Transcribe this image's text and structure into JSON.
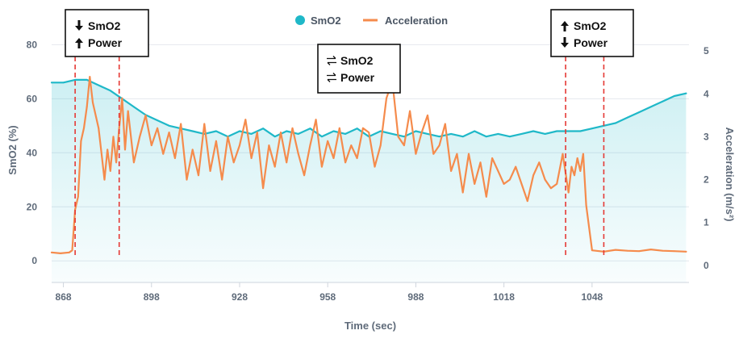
{
  "chart_data": {
    "type": "line",
    "xlabel": "Time (sec)",
    "ylabel_left": "SmO2 (%)",
    "ylabel_right": "Acceleration (m/s²)",
    "x_ticks": [
      868,
      898,
      928,
      958,
      988,
      1018,
      1048
    ],
    "x_tick_labels": [
      "868",
      "898",
      "928",
      "958",
      "988",
      "1018",
      "1048"
    ],
    "y_left_ticks": [
      0,
      20,
      40,
      60,
      80
    ],
    "y_left_tick_labels": [
      "0",
      "20",
      "40",
      "60",
      "80"
    ],
    "y_right_ticks": [
      0,
      1,
      2,
      3,
      4,
      5
    ],
    "y_right_tick_labels": [
      "0",
      "1",
      "2",
      "3",
      "4",
      "5"
    ],
    "xlim": [
      864,
      1081
    ],
    "ylim_left": [
      -8,
      84
    ],
    "ylim_right": [
      -0.4,
      5.4
    ],
    "legend_position": "top-center",
    "grid": "horizontal",
    "series": [
      {
        "name": "SmO2",
        "axis": "left",
        "color": "#1fb8c8",
        "fill": "area",
        "x": [
          864,
          868,
          872,
          876,
          880,
          884,
          888,
          892,
          896,
          900,
          904,
          908,
          912,
          916,
          920,
          924,
          928,
          932,
          936,
          940,
          944,
          948,
          952,
          956,
          960,
          964,
          968,
          972,
          976,
          980,
          984,
          988,
          992,
          996,
          1000,
          1004,
          1008,
          1012,
          1016,
          1020,
          1024,
          1028,
          1032,
          1036,
          1040,
          1044,
          1048,
          1052,
          1056,
          1060,
          1064,
          1068,
          1072,
          1076,
          1080
        ],
        "values": [
          66,
          66,
          67,
          67,
          65,
          63,
          60,
          57,
          54,
          52,
          50,
          49,
          48,
          47,
          48,
          46,
          48,
          47,
          49,
          46,
          48,
          47,
          49,
          46,
          48,
          47,
          49,
          46,
          48,
          47,
          46,
          48,
          47,
          46,
          47,
          46,
          48,
          46,
          47,
          46,
          47,
          48,
          47,
          48,
          48,
          48,
          49,
          50,
          51,
          53,
          55,
          57,
          59,
          61,
          62
        ]
      },
      {
        "name": "Acceleration",
        "axis": "right",
        "color": "#f58b4c",
        "fill": "none",
        "x": [
          864,
          867,
          870,
          871,
          872,
          873,
          874,
          875,
          876,
          877,
          878,
          880,
          881,
          882,
          883,
          884,
          885,
          886,
          887,
          888,
          889,
          890,
          892,
          894,
          896,
          898,
          900,
          902,
          904,
          906,
          908,
          910,
          912,
          914,
          916,
          918,
          920,
          922,
          924,
          926,
          928,
          930,
          932,
          934,
          936,
          938,
          940,
          942,
          944,
          946,
          948,
          950,
          952,
          954,
          956,
          958,
          960,
          962,
          964,
          966,
          968,
          970,
          972,
          974,
          976,
          978,
          980,
          982,
          984,
          986,
          988,
          990,
          992,
          994,
          996,
          998,
          1000,
          1002,
          1004,
          1006,
          1008,
          1010,
          1012,
          1014,
          1016,
          1018,
          1020,
          1022,
          1024,
          1026,
          1028,
          1030,
          1032,
          1034,
          1036,
          1038,
          1040,
          1041,
          1042,
          1043,
          1044,
          1045,
          1046,
          1048,
          1052,
          1056,
          1060,
          1064,
          1068,
          1072,
          1076,
          1080
        ],
        "values": [
          0.3,
          0.28,
          0.3,
          0.35,
          1.3,
          1.6,
          2.9,
          3.2,
          3.7,
          4.4,
          3.8,
          3.2,
          2.6,
          2.0,
          2.7,
          2.2,
          3.0,
          2.4,
          3.2,
          3.9,
          2.7,
          3.6,
          2.4,
          3.0,
          3.5,
          2.8,
          3.2,
          2.6,
          3.1,
          2.5,
          3.3,
          2.0,
          2.7,
          2.1,
          3.3,
          2.2,
          2.9,
          2.0,
          3.0,
          2.4,
          2.8,
          3.4,
          2.5,
          3.1,
          1.8,
          2.8,
          2.3,
          3.1,
          2.4,
          3.2,
          2.6,
          2.1,
          2.8,
          3.4,
          2.3,
          2.9,
          2.5,
          3.2,
          2.4,
          2.8,
          2.5,
          3.2,
          3.1,
          2.3,
          2.8,
          3.9,
          4.3,
          3.0,
          2.8,
          3.6,
          2.6,
          3.1,
          3.5,
          2.6,
          2.8,
          3.3,
          2.2,
          2.6,
          1.7,
          2.6,
          1.9,
          2.4,
          1.6,
          2.5,
          2.2,
          1.9,
          2.0,
          2.3,
          1.9,
          1.5,
          2.1,
          2.4,
          2.0,
          1.8,
          1.9,
          2.6,
          1.7,
          2.3,
          2.1,
          2.5,
          2.2,
          2.6,
          1.4,
          0.35,
          0.32,
          0.36,
          0.34,
          0.33,
          0.37,
          0.34,
          0.33,
          0.32
        ]
      }
    ],
    "markers_x": [
      872,
      887,
      1039,
      1052
    ],
    "annotations": [
      {
        "line1": "SmO2",
        "line1_icon": "arrow-down",
        "line2": "Power",
        "line2_icon": "arrow-up"
      },
      {
        "line1": "SmO2",
        "line1_icon": "arrows-both",
        "line2": "Power",
        "line2_icon": "arrows-both"
      },
      {
        "line1": "SmO2",
        "line1_icon": "arrow-up",
        "line2": "Power",
        "line2_icon": "arrow-down"
      }
    ],
    "legend": [
      {
        "label": "SmO2",
        "color": "#1fb8c8",
        "icon": "circle"
      },
      {
        "label": "Acceleration",
        "color": "#f58b4c",
        "icon": "line"
      }
    ]
  }
}
